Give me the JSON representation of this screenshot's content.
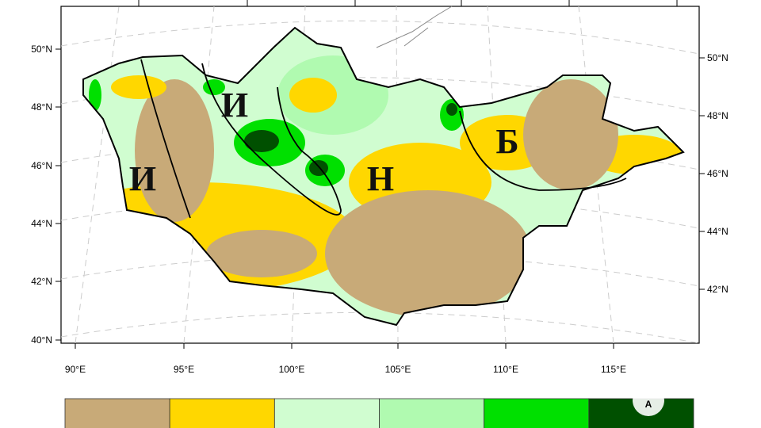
{
  "map": {
    "lat_labels_left": [
      "50°N",
      "48°N",
      "46°N",
      "44°N",
      "42°N",
      "40°N"
    ],
    "lat_labels_right": [
      "50°N",
      "48°N",
      "46°N",
      "44°N",
      "42°N"
    ],
    "lon_labels": [
      "90°E",
      "95°E",
      "100°E",
      "105°E",
      "110°E",
      "115°E"
    ],
    "region_labels": [
      "И",
      "И",
      "Н",
      "Б"
    ],
    "legend_colors": [
      "#c8aa78",
      "#ffd700",
      "#d0fdd0",
      "#b0fab0",
      "#00e000",
      "#005000"
    ],
    "logo": "A"
  }
}
